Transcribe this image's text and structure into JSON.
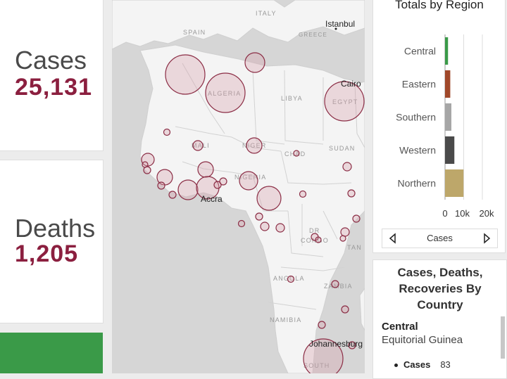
{
  "stats": {
    "cases": {
      "label": "Cases",
      "value": "25,131"
    },
    "deaths": {
      "label": "Deaths",
      "value": "1,205"
    }
  },
  "colors": {
    "accent": "#8b1f3f",
    "recovered_panel": "#3a9a48",
    "bubble_fill": "#e9cfd4",
    "bubble_stroke": "#8b2d45",
    "map_bg": "#d6d6d6",
    "land": "#f4f4f4"
  },
  "map": {
    "labels": {
      "italy": "ITALY",
      "spain": "SPAIN",
      "greece": "GREECE",
      "algeria": "ALGERIA",
      "libya": "LIBYA",
      "egypt": "EGYPT",
      "mali": "MALI",
      "niger": "NIGER",
      "chad": "CHAD",
      "sudan": "SUDAN",
      "nigeria": "NIGERIA",
      "dr": "DR",
      "congo": "CONGO",
      "tanzania_partial": "TAN",
      "angola": "ANGOLA",
      "zambia": "ZAMBIA",
      "namibia": "NAMIBIA",
      "south": "SOUTH"
    },
    "cities": {
      "istanbul": "Istanbul",
      "cairo": "Cairo",
      "accra": "Accra",
      "johannesburg": "Johannesburg"
    }
  },
  "chart": {
    "title": "Totals by Region",
    "pager_label": "Cases",
    "prev_icon": "caret-left-icon",
    "next_icon": "caret-right-icon"
  },
  "chart_data": {
    "type": "bar",
    "orientation": "horizontal",
    "title": "Totals by Region",
    "xlabel": "Cases",
    "ylabel": "",
    "categories": [
      "Central",
      "Eastern",
      "Southern",
      "Western",
      "Northern"
    ],
    "values": [
      1600,
      2800,
      3400,
      5000,
      9900
    ],
    "colors": [
      "#3a9a48",
      "#a0482a",
      "#a6a6a6",
      "#4a4a4a",
      "#bda76a"
    ],
    "ticks": [
      "0",
      "10k",
      "20k"
    ],
    "xlim": [
      0,
      20000
    ],
    "grid": true
  },
  "list": {
    "title_line1": "Cases, Deaths,",
    "title_line2": "Recoveries By",
    "title_line3": "Country",
    "region": "Central",
    "country": "Equitorial Guinea",
    "metric_label": "Cases",
    "metric_value": "83"
  }
}
